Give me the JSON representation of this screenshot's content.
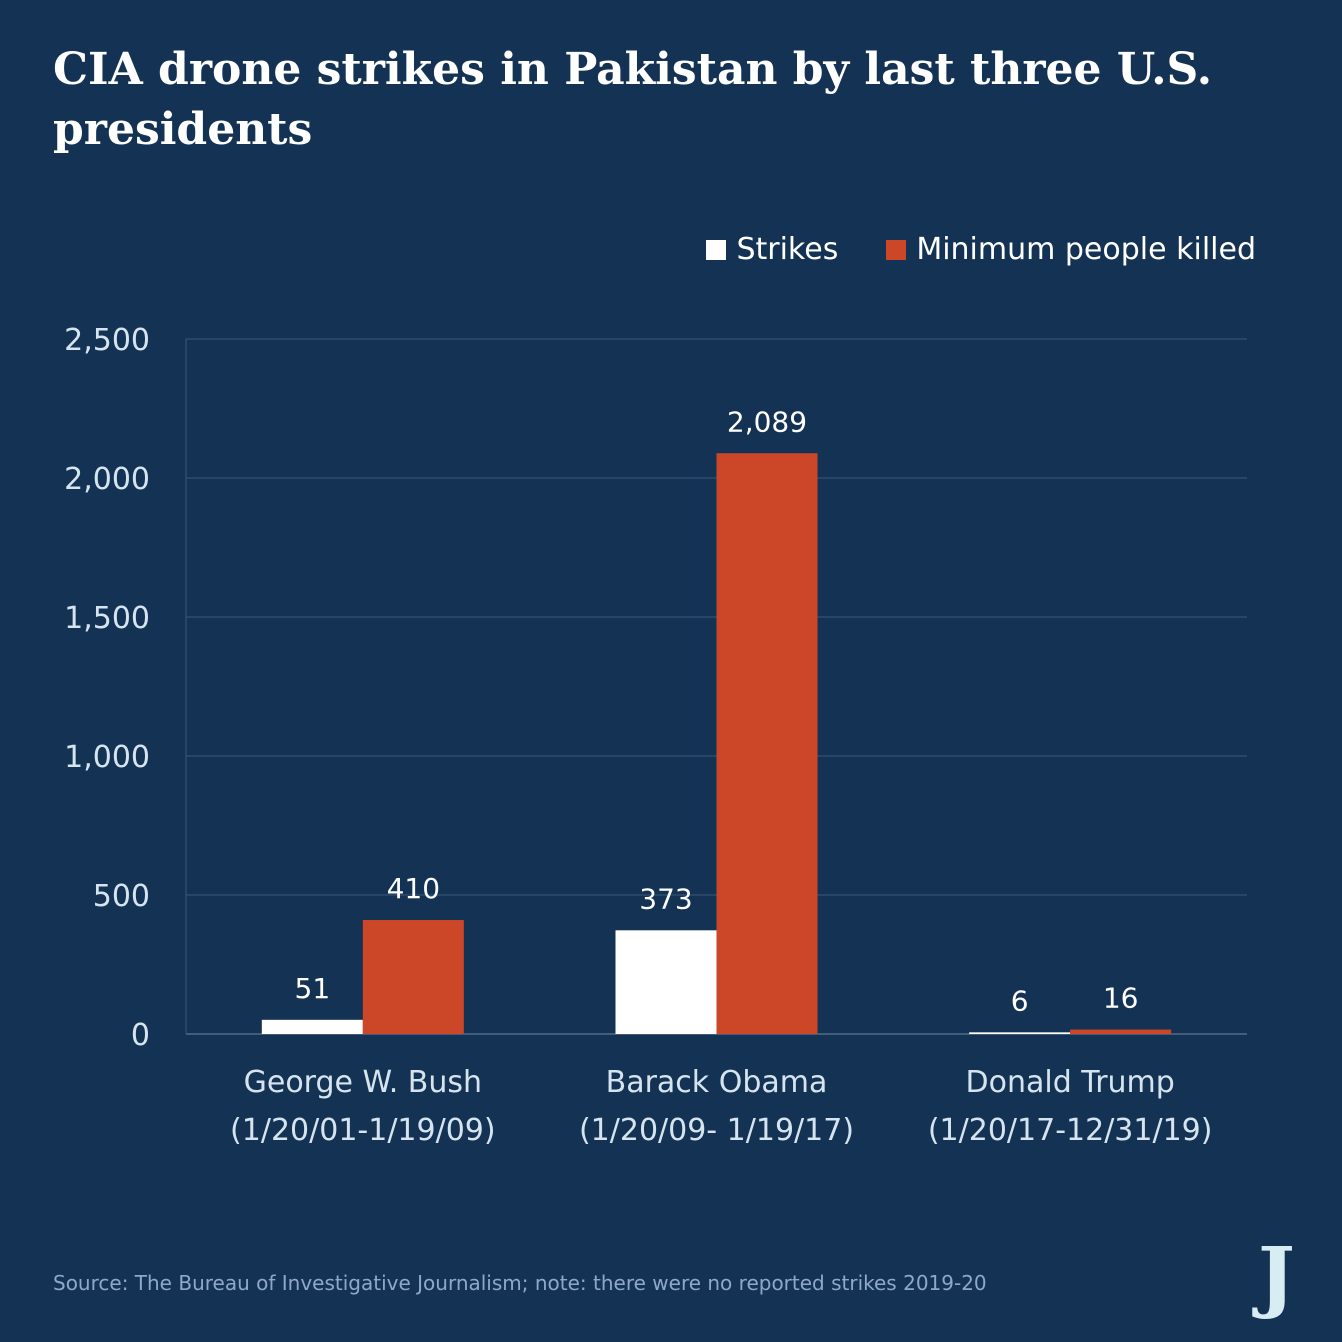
{
  "chart_data": {
    "type": "bar",
    "title": "CIA drone strikes in Pakistan by last three U.S. presidents",
    "categories": [
      {
        "name": "George W. Bush",
        "period": "(1/20/01-1/19/09)"
      },
      {
        "name": "Barack Obama",
        "period": "(1/20/09- 1/19/17)"
      },
      {
        "name": "Donald Trump",
        "period": "(1/20/17-12/31/19)"
      }
    ],
    "series": [
      {
        "name": "Strikes",
        "color": "#ffffff",
        "values": [
          51,
          373,
          6
        ],
        "labels": [
          "51",
          "373",
          "6"
        ]
      },
      {
        "name": "Minimum people killed",
        "color": "#cc4628",
        "values": [
          410,
          2089,
          16
        ],
        "labels": [
          "410",
          "2,089",
          "16"
        ]
      }
    ],
    "ylim": [
      0,
      2500
    ],
    "yticks": [
      0,
      500,
      1000,
      1500,
      2000,
      2500
    ],
    "ytick_labels": [
      "0",
      "500",
      "1,000",
      "1,500",
      "2,000",
      "2,500"
    ],
    "grid": true,
    "legend": "top-right",
    "xlabel": "",
    "ylabel": ""
  },
  "source": "Source: The Bureau of Investigative Journalism; note: there were no reported strikes 2019-20",
  "logo": "J"
}
